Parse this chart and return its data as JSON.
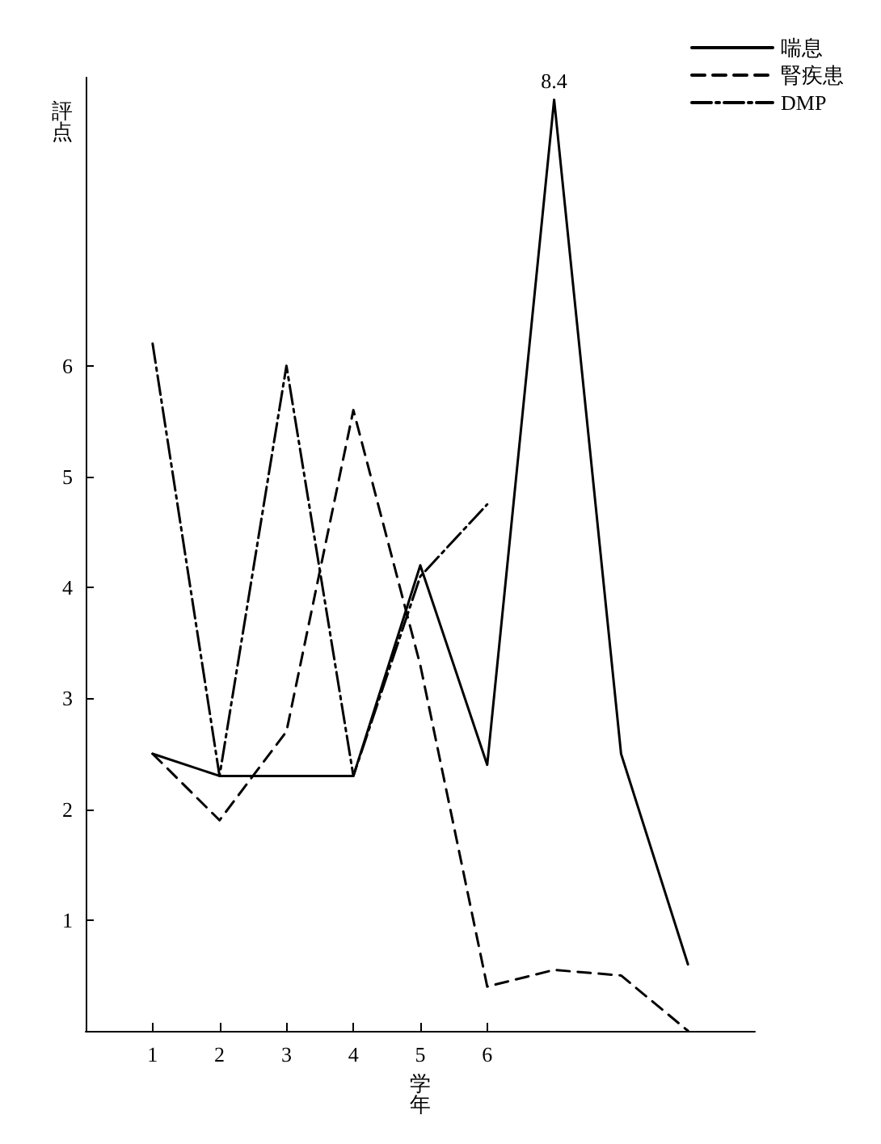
{
  "chart_data": {
    "type": "line",
    "ylabel": "評点",
    "xlabel": "学年",
    "categories": [
      "1",
      "2",
      "3",
      "4",
      "5",
      "6",
      null,
      null,
      null,
      null
    ],
    "series": [
      {
        "name": "喘息",
        "color": "#000000",
        "line_style": "solid",
        "values": [
          2.5,
          2.3,
          2.3,
          2.3,
          4.2,
          2.4,
          8.4,
          2.5,
          0.6,
          null
        ],
        "value_labels": [
          null,
          null,
          null,
          null,
          null,
          null,
          "8.4",
          null,
          null,
          null
        ]
      },
      {
        "name": "腎疾患",
        "color": "#000000",
        "line_style": "dashed",
        "values": [
          2.5,
          1.9,
          2.7,
          5.6,
          3.3,
          0.4,
          0.55,
          0.5,
          0,
          null
        ]
      },
      {
        "name": "DMP",
        "color": "#000000",
        "line_style": "dashdot",
        "values": [
          6.2,
          2.3,
          6.0,
          2.3,
          4.1,
          4.75,
          null,
          null,
          null,
          null
        ]
      }
    ],
    "ylim": [
      0,
      8.6
    ],
    "yticks": [
      1,
      2,
      3,
      4,
      5,
      6
    ],
    "grid": false,
    "legend": "top right",
    "marker": "none"
  }
}
